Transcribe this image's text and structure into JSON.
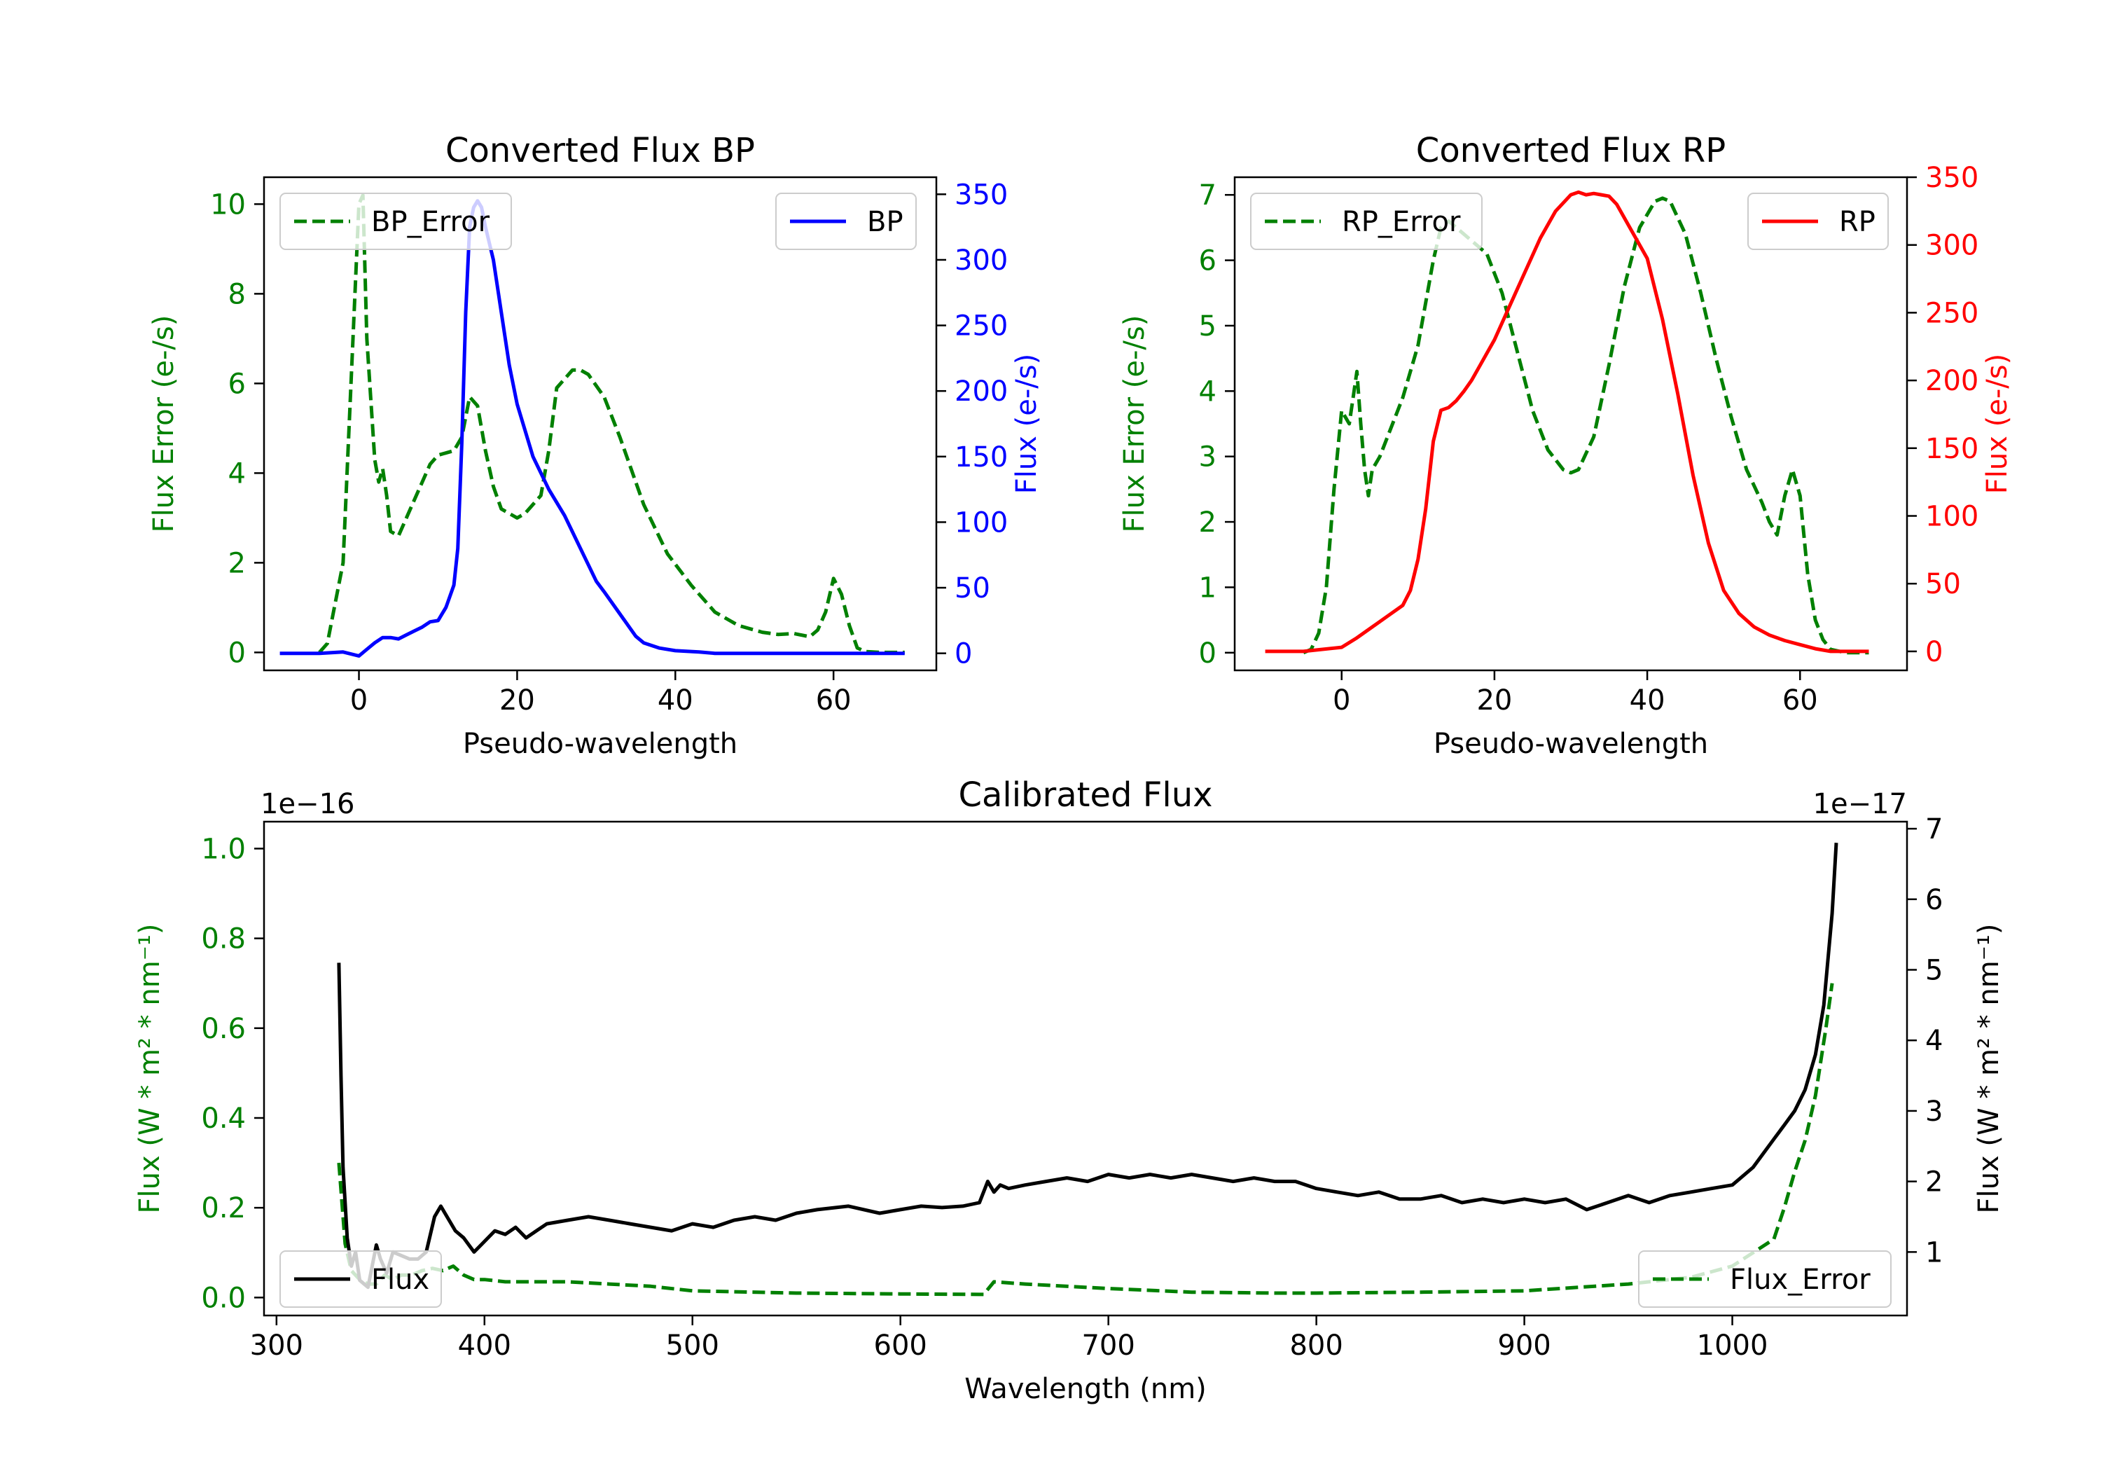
{
  "colors": {
    "green": "#008000",
    "blue": "#0000ff",
    "red": "#ff0000",
    "black": "#000000"
  },
  "chart_data": [
    {
      "type": "line",
      "title": "Converted Flux BP",
      "xlabel": "Pseudo-wavelength",
      "ylabel_left": "Flux Error (e-/s)",
      "ylabel_right": "Flux (e-/s)",
      "xlim": [
        -12,
        73
      ],
      "ylim_left": [
        -0.4,
        10.6
      ],
      "ylim_right": [
        -13,
        363
      ],
      "xticks": [
        "0",
        "20",
        "40",
        "60"
      ],
      "yticks_left": [
        "0",
        "2",
        "4",
        "6",
        "8",
        "10"
      ],
      "yticks_right": [
        "0",
        "50",
        "100",
        "150",
        "200",
        "250",
        "300",
        "350"
      ],
      "legend_left": "BP_Error",
      "legend_right": "BP",
      "series": [
        {
          "name": "BP_Error",
          "axis": "left",
          "style": "dashed",
          "color": "#008000",
          "x": [
            -5,
            -4,
            -2,
            -1,
            0,
            0.5,
            1,
            2,
            2.5,
            3,
            3.5,
            4,
            5,
            7,
            9,
            10,
            12,
            13,
            14,
            15,
            16,
            17,
            18,
            20,
            21,
            23,
            24,
            25,
            27,
            28,
            29,
            31,
            33,
            36,
            39,
            42,
            45,
            48,
            51,
            53,
            55,
            57,
            58,
            59,
            60,
            61,
            62,
            63,
            64,
            66,
            69
          ],
          "y": [
            0,
            0.2,
            2,
            6,
            10,
            10.2,
            7,
            4.3,
            3.8,
            4.1,
            3.5,
            2.7,
            2.6,
            3.4,
            4.2,
            4.4,
            4.5,
            4.8,
            5.7,
            5.5,
            4.5,
            3.7,
            3.2,
            3,
            3.1,
            3.5,
            4.5,
            5.9,
            6.3,
            6.3,
            6.2,
            5.7,
            4.8,
            3.3,
            2.2,
            1.5,
            0.9,
            0.6,
            0.45,
            0.4,
            0.42,
            0.35,
            0.5,
            0.9,
            1.65,
            1.3,
            0.6,
            0.1,
            0.02,
            0,
            0
          ]
        },
        {
          "name": "BP",
          "axis": "right",
          "style": "solid",
          "color": "#0000ff",
          "x": [
            -10,
            -5,
            -2,
            0,
            1,
            2,
            3,
            4,
            5,
            6,
            7,
            8,
            9,
            10,
            11,
            12,
            12.5,
            13,
            13.5,
            14,
            14.5,
            15,
            15.5,
            16,
            17,
            18,
            19,
            20,
            22,
            24,
            26,
            28,
            30,
            31,
            33,
            35,
            36,
            38,
            40,
            43,
            45,
            48,
            52,
            56,
            60,
            63,
            66,
            69
          ],
          "y": [
            0,
            0,
            1,
            -2,
            3,
            8,
            12,
            12,
            11,
            14,
            17,
            20,
            24,
            25,
            35,
            52,
            80,
            160,
            260,
            325,
            340,
            345,
            340,
            325,
            300,
            260,
            220,
            190,
            150,
            125,
            105,
            80,
            55,
            47,
            30,
            13,
            8,
            4,
            2,
            1,
            0,
            0,
            0,
            0,
            0,
            0,
            0,
            0
          ]
        }
      ]
    },
    {
      "type": "line",
      "title": "Converted Flux RP",
      "xlabel": "Pseudo-wavelength",
      "ylabel_left": "Flux Error (e-/s)",
      "ylabel_right": "Flux (e-/s)",
      "xlim": [
        -14,
        74
      ],
      "ylim_left": [
        -0.27,
        7.27
      ],
      "ylim_right": [
        -14,
        350
      ],
      "xticks": [
        "0",
        "20",
        "40",
        "60"
      ],
      "yticks_left": [
        "0",
        "1",
        "2",
        "3",
        "4",
        "5",
        "6",
        "7"
      ],
      "yticks_right": [
        "0",
        "50",
        "100",
        "150",
        "200",
        "250",
        "300",
        "350"
      ],
      "legend_left": "RP_Error",
      "legend_right": "RP",
      "series": [
        {
          "name": "RP_Error",
          "axis": "left",
          "style": "dashed",
          "color": "#008000",
          "x": [
            -5,
            -4,
            -3,
            -2,
            -1,
            0,
            1,
            1.5,
            2,
            2.5,
            3,
            3.5,
            4,
            5,
            6,
            8,
            10,
            12,
            13,
            14,
            15,
            17,
            19,
            21,
            23,
            25,
            27,
            29,
            30,
            31,
            33,
            35,
            37,
            39,
            41,
            42,
            43,
            45,
            47,
            49,
            51,
            53,
            55,
            56,
            57,
            58,
            59,
            60,
            61,
            62,
            63,
            64,
            66,
            69
          ],
          "y": [
            0,
            0.05,
            0.3,
            1,
            2.5,
            3.7,
            3.5,
            3.9,
            4.3,
            3.5,
            2.8,
            2.4,
            2.8,
            3,
            3.3,
            3.9,
            4.7,
            6,
            6.5,
            6.6,
            6.5,
            6.3,
            6.1,
            5.5,
            4.6,
            3.7,
            3.1,
            2.8,
            2.75,
            2.8,
            3.3,
            4.4,
            5.6,
            6.5,
            6.9,
            6.95,
            6.9,
            6.4,
            5.5,
            4.5,
            3.6,
            2.8,
            2.3,
            2.0,
            1.8,
            2.4,
            2.8,
            2.4,
            1.2,
            0.5,
            0.2,
            0.05,
            0,
            0
          ]
        },
        {
          "name": "RP",
          "axis": "right",
          "style": "solid",
          "color": "#ff0000",
          "x": [
            -10,
            -5,
            0,
            2,
            4,
            6,
            8,
            9,
            10,
            11,
            12,
            13,
            14,
            15,
            16,
            17,
            18,
            20,
            22,
            24,
            26,
            28,
            30,
            31,
            32,
            33,
            34,
            35,
            36,
            38,
            40,
            42,
            44,
            46,
            48,
            50,
            52,
            54,
            56,
            58,
            60,
            62,
            64,
            66,
            69
          ],
          "y": [
            0,
            0,
            3,
            10,
            18,
            26,
            34,
            45,
            68,
            105,
            155,
            178,
            180,
            185,
            192,
            200,
            210,
            230,
            255,
            280,
            305,
            325,
            337,
            339,
            337,
            338,
            337,
            336,
            330,
            310,
            290,
            245,
            190,
            130,
            80,
            45,
            28,
            18,
            12,
            8,
            5,
            2,
            0,
            0,
            0
          ]
        }
      ]
    },
    {
      "type": "line",
      "title": "Calibrated Flux",
      "xlabel": "Wavelength (nm)",
      "ylabel_left": "Flux (W * m² * nm⁻¹)",
      "ylabel_right": "Flux (W * m² * nm⁻¹)",
      "offset_left": "1e−16",
      "offset_right": "1e−17",
      "xlim": [
        294,
        1084
      ],
      "ylim_left": [
        -0.04,
        1.06
      ],
      "ylim_right": [
        0.1,
        7.1
      ],
      "xticks": [
        "300",
        "400",
        "500",
        "600",
        "700",
        "800",
        "900",
        "1000"
      ],
      "yticks_left": [
        "0.0",
        "0.2",
        "0.4",
        "0.6",
        "0.8",
        "1.0"
      ],
      "yticks_right": [
        "1",
        "2",
        "3",
        "4",
        "5",
        "6",
        "7"
      ],
      "legend_left": "Flux",
      "legend_right": "Flux_Error",
      "series": [
        {
          "name": "Flux_Error",
          "axis": "left",
          "style": "dashed",
          "color": "#008000",
          "x": [
            330,
            333,
            336,
            340,
            344,
            348,
            352,
            356,
            360,
            365,
            370,
            375,
            380,
            385,
            390,
            395,
            400,
            410,
            420,
            440,
            460,
            480,
            500,
            550,
            600,
            640,
            645,
            660,
            700,
            740,
            780,
            800,
            850,
            900,
            950,
            980,
            1000,
            1010,
            1020,
            1025,
            1030,
            1035,
            1040,
            1045,
            1048
          ],
          "y": [
            0.3,
            0.12,
            0.06,
            0.04,
            0.03,
            0.03,
            0.05,
            0.04,
            0.05,
            0.05,
            0.06,
            0.065,
            0.06,
            0.07,
            0.05,
            0.04,
            0.04,
            0.035,
            0.035,
            0.035,
            0.03,
            0.025,
            0.015,
            0.01,
            0.008,
            0.007,
            0.035,
            0.03,
            0.02,
            0.012,
            0.01,
            0.01,
            0.012,
            0.015,
            0.03,
            0.045,
            0.07,
            0.1,
            0.13,
            0.2,
            0.28,
            0.35,
            0.45,
            0.6,
            0.7
          ]
        },
        {
          "name": "Flux",
          "axis": "right",
          "style": "solid",
          "color": "#000000",
          "x": [
            330,
            331,
            332,
            334,
            336,
            338,
            340,
            342,
            344,
            346,
            348,
            350,
            353,
            356,
            360,
            364,
            368,
            372,
            376,
            379,
            382,
            386,
            390,
            395,
            400,
            405,
            410,
            415,
            420,
            425,
            430,
            440,
            450,
            460,
            470,
            480,
            490,
            500,
            510,
            520,
            530,
            540,
            550,
            560,
            575,
            590,
            600,
            610,
            620,
            630,
            638,
            642,
            645,
            648,
            652,
            660,
            670,
            680,
            690,
            700,
            710,
            720,
            730,
            740,
            750,
            760,
            770,
            780,
            790,
            800,
            810,
            820,
            830,
            840,
            850,
            860,
            870,
            880,
            890,
            900,
            910,
            920,
            930,
            940,
            950,
            960,
            970,
            980,
            990,
            1000,
            1010,
            1020,
            1025,
            1030,
            1035,
            1040,
            1044,
            1048,
            1050
          ],
          "y": [
            5.1,
            3.5,
            2.2,
            1.2,
            0.8,
            1.0,
            0.6,
            0.55,
            0.5,
            0.8,
            1.1,
            0.9,
            0.7,
            1.0,
            0.95,
            0.9,
            0.9,
            1.0,
            1.5,
            1.65,
            1.5,
            1.3,
            1.2,
            1.0,
            1.15,
            1.3,
            1.25,
            1.35,
            1.2,
            1.3,
            1.4,
            1.45,
            1.5,
            1.45,
            1.4,
            1.35,
            1.3,
            1.4,
            1.35,
            1.45,
            1.5,
            1.45,
            1.55,
            1.6,
            1.65,
            1.55,
            1.6,
            1.65,
            1.63,
            1.65,
            1.7,
            2.0,
            1.85,
            1.95,
            1.9,
            1.95,
            2.0,
            2.05,
            2.0,
            2.1,
            2.05,
            2.1,
            2.05,
            2.1,
            2.05,
            2.0,
            2.05,
            2.0,
            2.0,
            1.9,
            1.85,
            1.8,
            1.85,
            1.75,
            1.75,
            1.8,
            1.7,
            1.75,
            1.7,
            1.75,
            1.7,
            1.75,
            1.6,
            1.7,
            1.8,
            1.7,
            1.8,
            1.85,
            1.9,
            1.95,
            2.2,
            2.6,
            2.8,
            3.0,
            3.3,
            3.8,
            4.5,
            5.8,
            6.8
          ]
        }
      ]
    }
  ]
}
